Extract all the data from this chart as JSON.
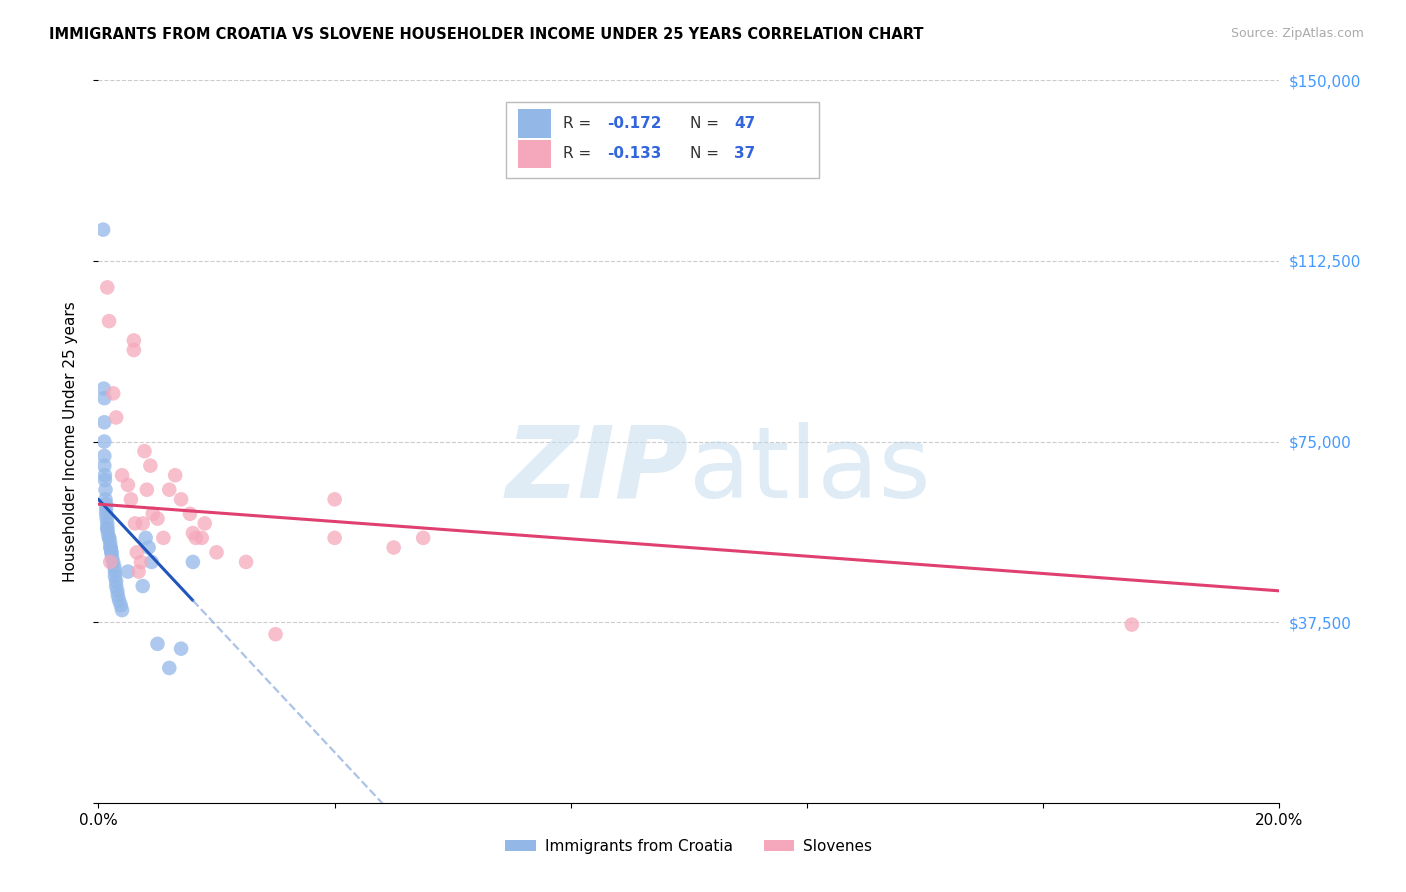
{
  "title": "IMMIGRANTS FROM CROATIA VS SLOVENE HOUSEHOLDER INCOME UNDER 25 YEARS CORRELATION CHART",
  "source": "Source: ZipAtlas.com",
  "ylabel": "Householder Income Under 25 years",
  "xmin": 0.0,
  "xmax": 0.2,
  "ymin": 0,
  "ymax": 150000,
  "yticks": [
    0,
    37500,
    75000,
    112500,
    150000
  ],
  "ytick_labels": [
    "",
    "$37,500",
    "$75,000",
    "$112,500",
    "$150,000"
  ],
  "xtick_positions": [
    0.0,
    0.04,
    0.08,
    0.12,
    0.16,
    0.2
  ],
  "xtick_labels": [
    "0.0%",
    "",
    "",
    "",
    "",
    "20.0%"
  ],
  "croatia_color": "#93b8e8",
  "slovene_color": "#f5a8bb",
  "croatia_line_color": "#2255bb",
  "slovene_line_color": "#e04070",
  "croatia_line_dash_color": "#88aadd",
  "watermark_zip_color": "#c8dff0",
  "watermark_atlas_color": "#b8d8ec",
  "croatia_x": [
    0.0008,
    0.0009,
    0.001,
    0.001,
    0.001,
    0.001,
    0.001,
    0.0011,
    0.0011,
    0.0012,
    0.0012,
    0.0013,
    0.0013,
    0.0013,
    0.0014,
    0.0015,
    0.0015,
    0.0015,
    0.0016,
    0.0018,
    0.0018,
    0.002,
    0.002,
    0.0021,
    0.0022,
    0.0022,
    0.0023,
    0.0025,
    0.0027,
    0.0028,
    0.0028,
    0.003,
    0.003,
    0.0032,
    0.0033,
    0.0035,
    0.0038,
    0.004,
    0.005,
    0.0075,
    0.008,
    0.0085,
    0.009,
    0.01,
    0.012,
    0.014,
    0.016
  ],
  "croatia_y": [
    119000,
    86000,
    84000,
    79000,
    75000,
    72000,
    70000,
    68000,
    67000,
    65000,
    63000,
    62000,
    61000,
    60000,
    59000,
    58000,
    57000,
    57000,
    56000,
    55000,
    55000,
    54000,
    53000,
    53000,
    52000,
    52000,
    51000,
    50000,
    49000,
    48000,
    47000,
    46000,
    45000,
    44000,
    43000,
    42000,
    41000,
    40000,
    48000,
    45000,
    55000,
    53000,
    50000,
    33000,
    28000,
    32000,
    50000
  ],
  "slovene_x": [
    0.0015,
    0.0018,
    0.002,
    0.0025,
    0.003,
    0.004,
    0.005,
    0.0055,
    0.006,
    0.006,
    0.0062,
    0.0065,
    0.0068,
    0.0072,
    0.0075,
    0.0078,
    0.0082,
    0.0088,
    0.0092,
    0.01,
    0.011,
    0.012,
    0.013,
    0.014,
    0.0155,
    0.016,
    0.0165,
    0.0175,
    0.018,
    0.02,
    0.025,
    0.03,
    0.04,
    0.04,
    0.05,
    0.055,
    0.175
  ],
  "slovene_y": [
    107000,
    100000,
    50000,
    85000,
    80000,
    68000,
    66000,
    63000,
    96000,
    94000,
    58000,
    52000,
    48000,
    50000,
    58000,
    73000,
    65000,
    70000,
    60000,
    59000,
    55000,
    65000,
    68000,
    63000,
    60000,
    56000,
    55000,
    55000,
    58000,
    52000,
    50000,
    35000,
    55000,
    63000,
    53000,
    55000,
    37000
  ]
}
